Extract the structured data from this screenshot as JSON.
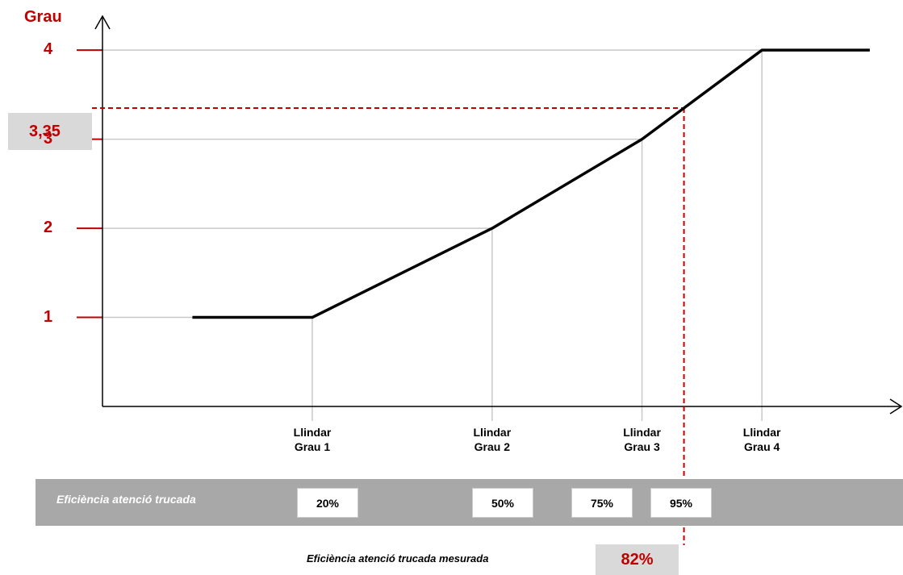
{
  "chart_data": {
    "type": "line",
    "ylabel": "Grau",
    "x": [
      0,
      20,
      50,
      75,
      82,
      95,
      113
    ],
    "y": [
      1,
      1,
      2,
      3,
      3.35,
      4,
      4
    ],
    "xlim": [
      -15,
      118
    ],
    "ylim": [
      0,
      4.4
    ],
    "ytick_labels": [
      "1",
      "2",
      "3",
      "4"
    ],
    "thresholds": [
      {
        "label_line1": "Llindar",
        "label_line2": "Grau 1",
        "value": 20,
        "pct": "20%",
        "grau": 1
      },
      {
        "label_line1": "Llindar",
        "label_line2": "Grau 2",
        "value": 50,
        "pct": "50%",
        "grau": 2
      },
      {
        "label_line1": "Llindar",
        "label_line2": "Grau 3",
        "value": 75,
        "pct": "75%",
        "grau": 3
      },
      {
        "label_line1": "Llindar",
        "label_line2": "Grau  4",
        "value": 95,
        "pct": "95%",
        "grau": 4
      }
    ],
    "measured": {
      "x": 82,
      "y": 3.35,
      "y_label": "3,35",
      "x_label": "82%"
    },
    "strip_label": "Eficiència  atenció  trucada",
    "measured_label": "Eficiència  atenció  trucada  mesurada",
    "colors": {
      "line": "#000000",
      "accent": "#c00000",
      "grid": "#c8c8c8",
      "strip": "#a8a8a8",
      "highlight_box": "#d9d9d9"
    }
  }
}
